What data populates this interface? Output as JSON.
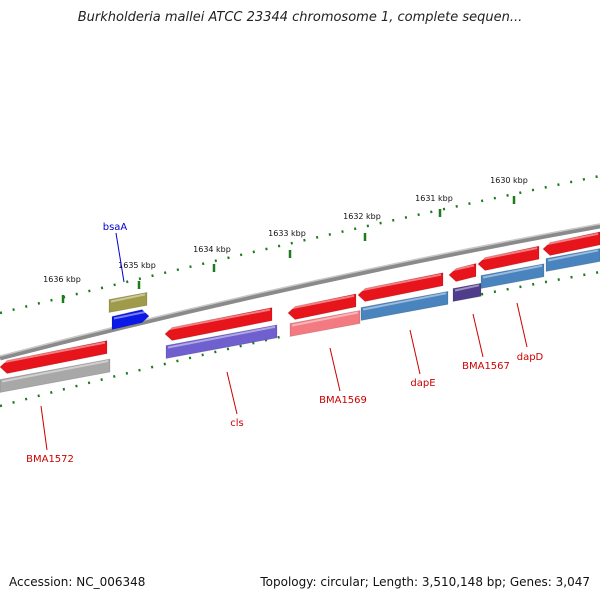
{
  "title": "Burkholderia mallei ATCC 23344 chromosome 1, complete sequen...",
  "footer": {
    "accession": "Accession: NC_006348",
    "summary": "Topology: circular; Length: 3,510,148 bp; Genes: 3,047"
  },
  "colors": {
    "backbone": "#7a7a7a",
    "tick": "#1e7a1e",
    "forward": "#e8141c",
    "forward_light": "#f27a80",
    "reverse_blue": "#4a84bf",
    "reverse_purple": "#6f5fcf",
    "reverse_dark": "#4f3d8c",
    "gray": "#a8a8a8",
    "olive": "#a09b4a",
    "bright_blue": "#0a18e8",
    "label_red": "#cc0000",
    "label_blue": "#0000cc"
  },
  "scale": {
    "ticks": [
      {
        "label": "1630 kbp"
      },
      {
        "label": "1631 kbp"
      },
      {
        "label": "1632 kbp"
      },
      {
        "label": "1633 kbp"
      },
      {
        "label": "1634 kbp"
      },
      {
        "label": "1635 kbp"
      },
      {
        "label": "1636 kbp"
      }
    ]
  },
  "gene_labels": [
    {
      "name": "bsaA",
      "color": "label_blue"
    },
    {
      "name": "BMA1572",
      "color": "label_red"
    },
    {
      "name": "cls",
      "color": "label_red"
    },
    {
      "name": "BMA1569",
      "color": "label_red"
    },
    {
      "name": "dapE",
      "color": "label_red"
    },
    {
      "name": "BMA1567",
      "color": "label_red"
    },
    {
      "name": "dapD",
      "color": "label_red"
    }
  ]
}
